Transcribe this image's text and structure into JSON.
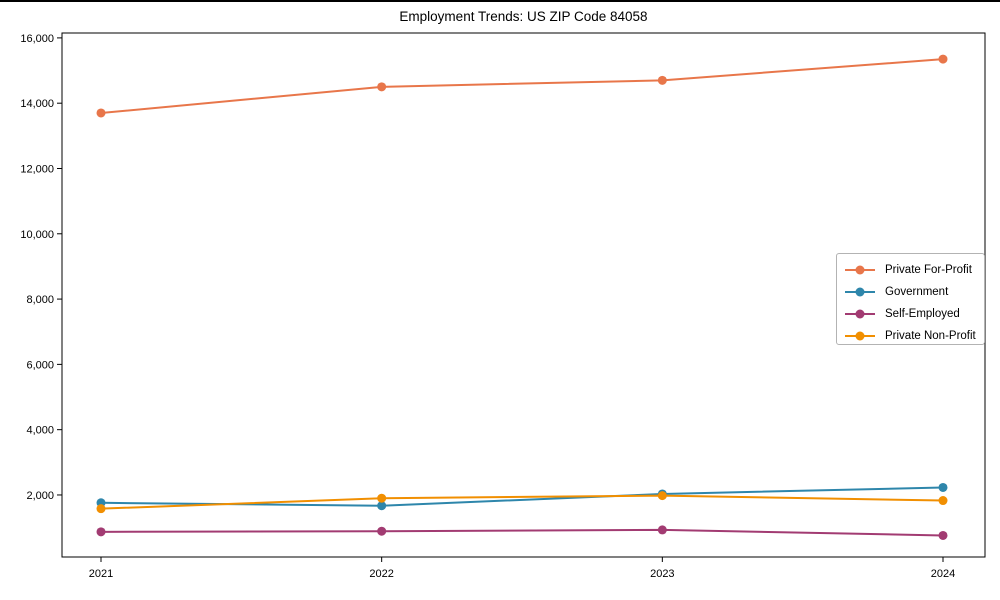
{
  "chart_data": {
    "type": "line",
    "title": "Employment Trends: US ZIP Code 84058",
    "categories": [
      "2021",
      "2022",
      "2023",
      "2024"
    ],
    "series": [
      {
        "name": "Private For-Profit",
        "color": "#E8764A",
        "values": [
          13700,
          14500,
          14700,
          15350
        ]
      },
      {
        "name": "Government",
        "color": "#2E86AB",
        "values": [
          1760,
          1670,
          2030,
          2230
        ]
      },
      {
        "name": "Self-Employed",
        "color": "#A23B72",
        "values": [
          870,
          890,
          930,
          760
        ]
      },
      {
        "name": "Private Non-Profit",
        "color": "#F18F01",
        "values": [
          1580,
          1900,
          1980,
          1830
        ]
      }
    ],
    "xlabel": "",
    "ylabel": "",
    "yticks": [
      2000,
      4000,
      6000,
      8000,
      10000,
      12000,
      14000,
      16000
    ],
    "ytick_labels": [
      "2,000",
      "4,000",
      "6,000",
      "8,000",
      "10,000",
      "12,000",
      "14,000",
      "16,000"
    ],
    "ylim": [
      100,
      16150
    ],
    "grid": false,
    "legend_position": "center-right",
    "marker": "circle"
  }
}
